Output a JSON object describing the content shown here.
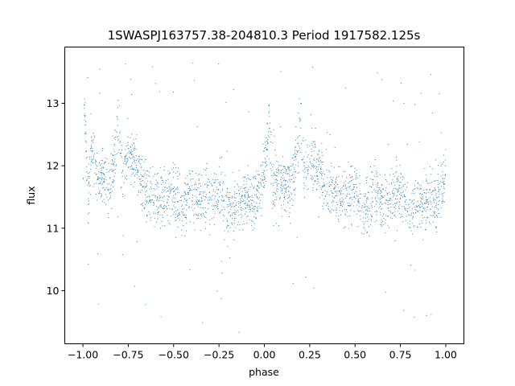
{
  "chart_data": {
    "type": "scatter",
    "title": "1SWASPJ163757.38-204810.3 Period 1917582.125s",
    "xlabel": "phase",
    "ylabel": "flux",
    "xlim": [
      -1.1,
      1.1
    ],
    "ylim": [
      9.15,
      13.9
    ],
    "xticks": [
      -1.0,
      -0.75,
      -0.5,
      -0.25,
      0.0,
      0.25,
      0.5,
      0.75,
      1.0
    ],
    "xtick_labels": [
      "−1.00",
      "−0.75",
      "−0.50",
      "−0.25",
      "0.00",
      "0.25",
      "0.50",
      "0.75",
      "1.00"
    ],
    "yticks": [
      10,
      11,
      12,
      13
    ],
    "ytick_labels": [
      "10",
      "11",
      "12",
      "13"
    ],
    "grid": false,
    "marker_color": "#1f77b4",
    "series": [
      {
        "points_approx": [
          [
            -1.0,
            12.0
          ],
          [
            -0.99,
            12.9
          ],
          [
            -0.97,
            11.4
          ],
          [
            -0.95,
            12.3
          ],
          [
            -0.92,
            11.7
          ],
          [
            -0.9,
            11.9
          ],
          [
            -0.85,
            11.6
          ],
          [
            -0.8,
            12.7
          ],
          [
            -0.78,
            11.7
          ],
          [
            -0.75,
            12.2
          ],
          [
            -0.7,
            12.0
          ],
          [
            -0.65,
            11.6
          ],
          [
            -0.6,
            11.5
          ],
          [
            -0.55,
            11.5
          ],
          [
            -0.5,
            11.6
          ],
          [
            -0.45,
            11.3
          ],
          [
            -0.4,
            11.6
          ],
          [
            -0.35,
            11.4
          ],
          [
            -0.3,
            11.5
          ],
          [
            -0.25,
            11.6
          ],
          [
            -0.2,
            11.3
          ],
          [
            -0.15,
            11.4
          ],
          [
            -0.1,
            11.5
          ],
          [
            -0.05,
            11.4
          ],
          [
            0.0,
            11.9
          ],
          [
            0.03,
            12.6
          ],
          [
            0.05,
            11.6
          ],
          [
            0.1,
            11.8
          ],
          [
            0.15,
            11.6
          ],
          [
            0.2,
            12.7
          ],
          [
            0.22,
            11.8
          ],
          [
            0.25,
            12.1
          ],
          [
            0.3,
            11.9
          ],
          [
            0.35,
            11.6
          ],
          [
            0.4,
            11.5
          ],
          [
            0.45,
            11.5
          ],
          [
            0.5,
            11.6
          ],
          [
            0.55,
            11.3
          ],
          [
            0.6,
            11.6
          ],
          [
            0.65,
            11.4
          ],
          [
            0.7,
            11.5
          ],
          [
            0.75,
            11.6
          ],
          [
            0.8,
            11.3
          ],
          [
            0.85,
            11.4
          ],
          [
            0.9,
            11.5
          ],
          [
            0.95,
            11.4
          ],
          [
            1.0,
            11.9
          ]
        ]
      }
    ]
  }
}
